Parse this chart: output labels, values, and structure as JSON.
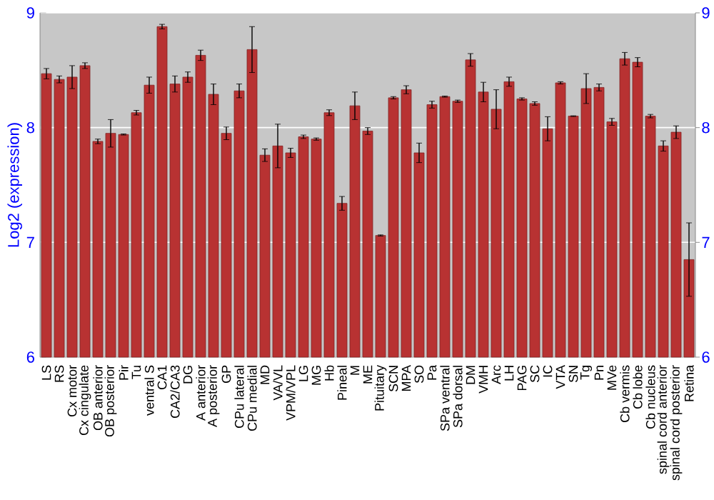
{
  "chart_data": {
    "type": "bar",
    "ylabel": "Log2 (expression)",
    "categories": [
      "LS",
      "RS",
      "Cx motor",
      "Cx cingulate",
      "OB anterior",
      "OB posterior",
      "Pir",
      "Tu",
      "ventral S",
      "CA1",
      "CA2/CA3",
      "DG",
      "A anterior",
      "A posterior",
      "GP",
      "CPu lateral",
      "CPu medial",
      "MD",
      "VA/VL",
      "VPM/VPL",
      "LG",
      "MG",
      "Hb",
      "Pineal",
      "M",
      "ME",
      "Pituitary",
      "SCN",
      "MPA",
      "SO",
      "Pa",
      "SPa ventral",
      "SPa dorsal",
      "DM",
      "VMH",
      "Arc",
      "LH",
      "PAG",
      "SC",
      "IC",
      "VTA",
      "SN",
      "Tg",
      "Pn",
      "MVe",
      "Cb vermis",
      "Cb lobe",
      "Cb nucleus",
      "spinal cord anterior",
      "spinal cord posterior",
      "Retina"
    ],
    "values": [
      8.47,
      8.42,
      8.44,
      8.54,
      7.88,
      7.95,
      7.94,
      8.13,
      8.37,
      8.88,
      8.38,
      8.44,
      8.63,
      8.29,
      7.95,
      8.32,
      8.68,
      7.76,
      7.84,
      7.78,
      7.92,
      7.9,
      8.13,
      7.34,
      8.19,
      7.97,
      7.06,
      8.26,
      8.33,
      7.78,
      8.2,
      8.27,
      8.23,
      8.59,
      8.31,
      8.16,
      8.4,
      8.25,
      8.21,
      7.99,
      8.39,
      8.1,
      8.34,
      8.35,
      8.05,
      8.6,
      8.57,
      8.1,
      7.84,
      7.96,
      6.85
    ],
    "errors": [
      0.045,
      0.03,
      0.1,
      0.025,
      0.02,
      0.12,
      0.005,
      0.02,
      0.07,
      0.02,
      0.07,
      0.045,
      0.045,
      0.09,
      0.055,
      0.06,
      0.2,
      0.055,
      0.19,
      0.04,
      0.015,
      0.01,
      0.025,
      0.06,
      0.12,
      0.03,
      0.005,
      0.01,
      0.035,
      0.085,
      0.03,
      0.005,
      0.01,
      0.055,
      0.085,
      0.17,
      0.04,
      0.01,
      0.015,
      0.105,
      0.01,
      0.003,
      0.13,
      0.03,
      0.03,
      0.055,
      0.04,
      0.015,
      0.045,
      0.055,
      0.32
    ],
    "color": "#b83232",
    "ylim": [
      6,
      9
    ],
    "yticks": [
      6,
      7,
      8,
      9
    ],
    "y2lim": [
      6,
      9
    ],
    "y2ticks": [
      6,
      7,
      8,
      9
    ],
    "grid": "y"
  }
}
